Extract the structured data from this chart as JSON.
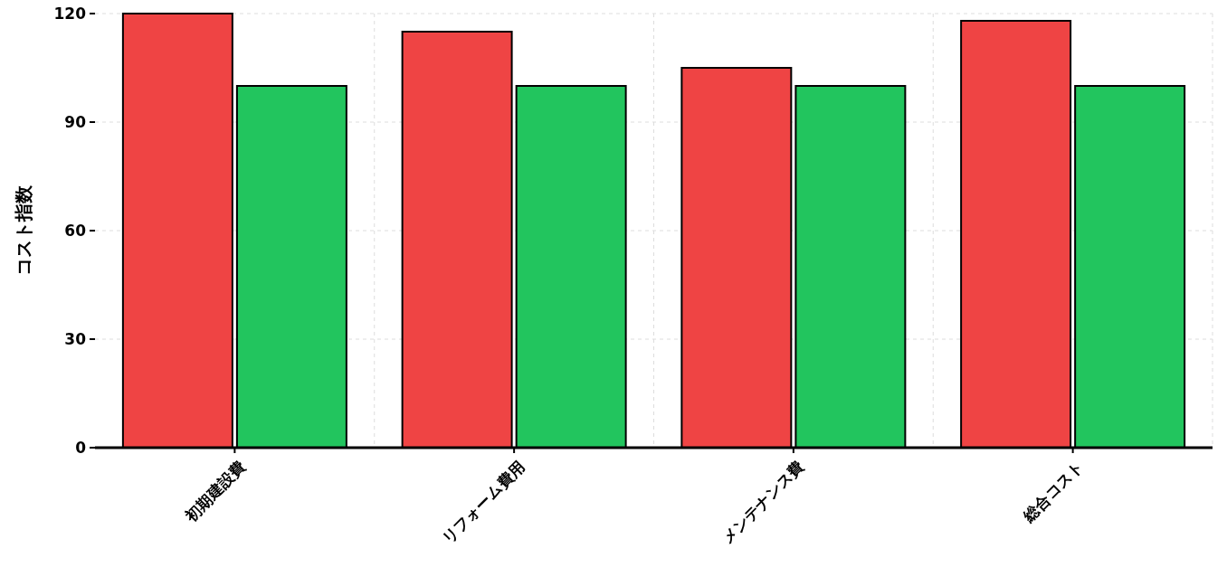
{
  "chart_data": {
    "type": "bar",
    "ylabel": "コスト指数",
    "categories": [
      "初期建設費",
      "リフォーム費用",
      "メンテナンス費",
      "総合コスト"
    ],
    "series": [
      {
        "color": "#ef4444",
        "values": [
          120,
          115,
          105,
          118
        ]
      },
      {
        "color": "#22c55e",
        "values": [
          100,
          100,
          100,
          100
        ]
      }
    ],
    "ylim": [
      0,
      120
    ],
    "yticks": [
      0,
      30,
      60,
      90,
      120
    ],
    "grid": true
  }
}
